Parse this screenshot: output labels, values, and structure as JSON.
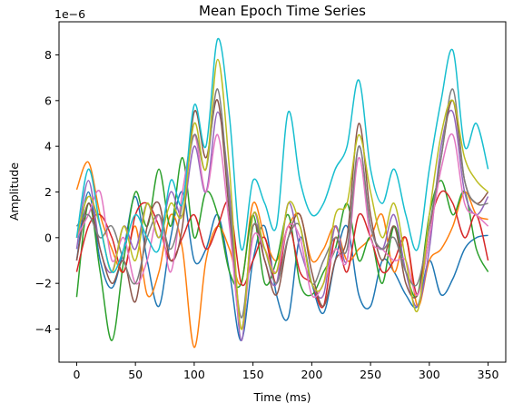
{
  "chart_data": {
    "type": "line",
    "title": "Mean Epoch Time Series",
    "xlabel": "Time (ms)",
    "ylabel": "Amplitude",
    "y_offset_text": "1e−6",
    "xlim": [
      -15,
      365
    ],
    "ylim": [
      -5.45,
      9.45
    ],
    "x_ticks": [
      0,
      50,
      100,
      150,
      200,
      250,
      300,
      350
    ],
    "y_ticks": [
      -4,
      -2,
      0,
      2,
      4,
      6,
      8
    ],
    "x_tick_labels": [
      "0",
      "50",
      "100",
      "150",
      "200",
      "250",
      "300",
      "350"
    ],
    "y_tick_labels": [
      "−4",
      "−2",
      "0",
      "2",
      "4",
      "6",
      "8"
    ],
    "grid": false,
    "legend": "none",
    "x_step": 10,
    "series": [
      {
        "color": "#1f77b4",
        "values": [
          -1.0,
          2.0,
          -1.0,
          -2.2,
          -0.5,
          1.8,
          -1.0,
          -3.0,
          0.0,
          2.0,
          -1.0,
          -0.5,
          1.0,
          -1.5,
          -4.5,
          -1.0,
          0.5,
          -2.5,
          -3.5,
          0.0,
          -2.0,
          -3.3,
          -1.0,
          0.5,
          -2.5,
          -3.0,
          -1.0,
          -1.5,
          -2.5,
          -3.0,
          -1.0,
          -2.5,
          -1.8,
          -0.5,
          0.0,
          0.1
        ]
      },
      {
        "color": "#ff7f0e",
        "values": [
          2.1,
          3.3,
          1.0,
          -0.5,
          -1.5,
          0.5,
          -2.5,
          -1.5,
          1.0,
          -0.5,
          -4.8,
          -1.0,
          0.5,
          -0.5,
          -2.0,
          1.5,
          0.0,
          -1.0,
          0.5,
          1.0,
          -1.0,
          -0.5,
          0.5,
          -1.0,
          -0.5,
          0.0,
          1.0,
          -1.5,
          0.0,
          -3.0,
          -1.0,
          -0.5,
          0.5,
          2.0,
          1.0,
          0.8
        ]
      },
      {
        "color": "#2ca02c",
        "values": [
          -2.6,
          1.5,
          -1.5,
          -4.5,
          -1.0,
          2.0,
          0.5,
          3.0,
          0.5,
          3.5,
          0.0,
          2.0,
          1.0,
          -1.5,
          -2.0,
          1.0,
          -2.0,
          -1.0,
          1.0,
          -2.0,
          -2.5,
          -1.5,
          -0.5,
          1.5,
          -1.0,
          0.0,
          -2.0,
          0.5,
          -1.5,
          -2.5,
          1.0,
          2.5,
          1.0,
          2.0,
          -0.5,
          -1.5
        ]
      },
      {
        "color": "#d62728",
        "values": [
          -1.5,
          0.5,
          1.0,
          0.0,
          -1.5,
          1.0,
          1.5,
          0.5,
          -1.0,
          0.0,
          1.0,
          -0.5,
          0.5,
          1.5,
          -2.0,
          -1.0,
          0.0,
          -2.0,
          0.5,
          -1.5,
          -2.0,
          -3.0,
          0.0,
          -1.5,
          1.0,
          0.0,
          -1.5,
          -1.0,
          0.0,
          -2.5,
          0.5,
          2.0,
          1.5,
          0.0,
          1.0,
          -1.0
        ]
      },
      {
        "color": "#9467bd",
        "values": [
          -0.5,
          2.5,
          -0.5,
          -1.5,
          0.5,
          -0.5,
          1.5,
          0.0,
          2.0,
          1.0,
          4.0,
          2.0,
          5.5,
          2.0,
          -4.5,
          1.0,
          -1.0,
          -2.0,
          1.5,
          -0.5,
          -2.0,
          -2.5,
          0.5,
          -1.0,
          4.0,
          0.5,
          -0.5,
          1.0,
          -1.5,
          -3.0,
          -0.5,
          4.0,
          5.5,
          2.0,
          1.0,
          1.8
        ]
      },
      {
        "color": "#8c564b",
        "values": [
          -1.0,
          1.5,
          -0.5,
          -2.0,
          -1.0,
          -2.8,
          0.5,
          1.5,
          -1.0,
          0.5,
          5.5,
          3.5,
          6.0,
          1.0,
          -4.0,
          0.5,
          -1.0,
          -2.5,
          0.0,
          1.0,
          -1.5,
          -3.0,
          -1.0,
          0.0,
          5.0,
          1.0,
          -1.0,
          0.5,
          -2.0,
          -2.5,
          0.0,
          3.5,
          6.0,
          2.5,
          1.5,
          2.0
        ]
      },
      {
        "color": "#e377c2",
        "values": [
          0.0,
          1.0,
          2.0,
          -1.0,
          0.0,
          -2.0,
          -1.0,
          1.0,
          -1.5,
          2.0,
          4.5,
          2.0,
          4.5,
          0.5,
          -4.0,
          0.0,
          -0.5,
          -1.5,
          0.5,
          0.0,
          -2.5,
          -2.0,
          -0.5,
          -1.0,
          3.5,
          0.0,
          -0.5,
          -1.0,
          -1.0,
          -2.5,
          0.0,
          3.0,
          4.5,
          1.5,
          1.0,
          0.5
        ]
      },
      {
        "color": "#7f7f7f",
        "values": [
          0.5,
          1.0,
          0.0,
          0.5,
          -1.0,
          -2.0,
          0.0,
          1.0,
          -0.5,
          1.5,
          4.5,
          3.0,
          6.5,
          1.5,
          -3.5,
          0.5,
          -0.5,
          -2.0,
          0.0,
          0.5,
          -2.0,
          -1.0,
          0.0,
          -0.5,
          4.0,
          0.5,
          -0.5,
          0.0,
          -1.5,
          -2.0,
          0.5,
          3.5,
          6.5,
          2.5,
          1.5,
          1.5
        ]
      },
      {
        "color": "#bcbd22",
        "values": [
          0.0,
          1.8,
          0.5,
          -1.5,
          0.5,
          -1.0,
          1.5,
          0.0,
          1.5,
          1.0,
          5.0,
          3.0,
          7.8,
          3.0,
          -4.0,
          1.0,
          -0.5,
          -1.5,
          1.5,
          0.5,
          -2.0,
          -2.0,
          1.0,
          1.5,
          4.5,
          2.0,
          0.0,
          1.5,
          -1.0,
          -3.2,
          1.0,
          4.5,
          6.0,
          3.5,
          2.5,
          2.0
        ]
      },
      {
        "color": "#17becf",
        "values": [
          0.0,
          3.0,
          0.5,
          -1.5,
          -0.5,
          1.0,
          0.0,
          -0.5,
          2.5,
          1.5,
          5.8,
          4.0,
          8.7,
          5.3,
          -0.5,
          2.5,
          1.5,
          0.5,
          5.5,
          2.5,
          1.0,
          1.5,
          3.0,
          4.0,
          6.9,
          3.0,
          1.5,
          3.0,
          1.0,
          -0.5,
          3.0,
          6.0,
          8.2,
          4.0,
          5.0,
          3.0
        ]
      }
    ]
  }
}
